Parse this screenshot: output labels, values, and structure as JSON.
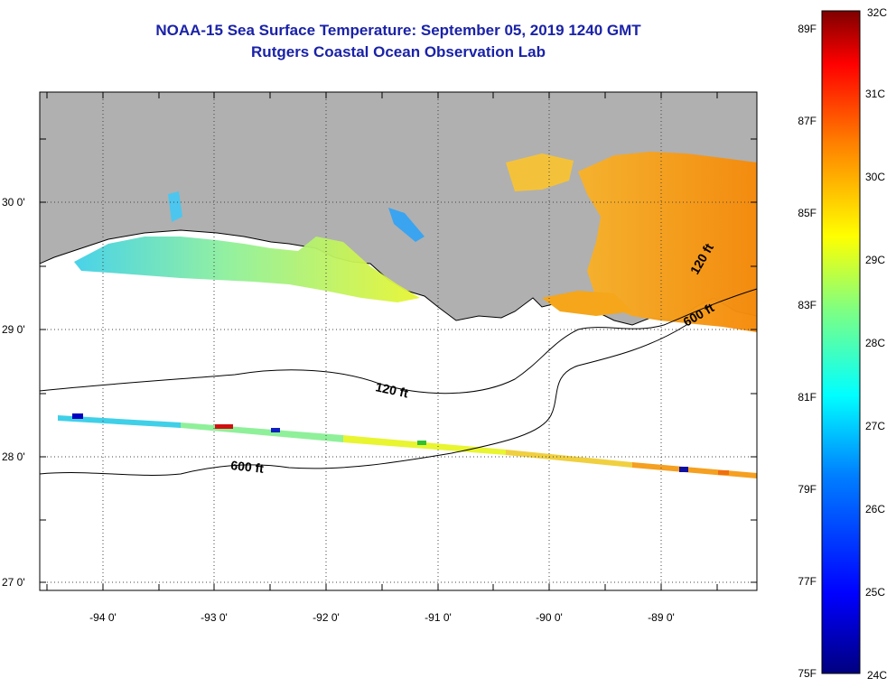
{
  "title": "NOAA-15 Sea Surface Temperature:  September 05, 2019 1240 GMT",
  "subtitle": "Rutgers Coastal Ocean Observation Lab",
  "map": {
    "lon_ticks": [
      {
        "value": -94,
        "label": "-94 0'"
      },
      {
        "value": -93,
        "label": "-93 0'"
      },
      {
        "value": -92,
        "label": "-92 0'"
      },
      {
        "value": -91,
        "label": "-91 0'"
      },
      {
        "value": -90,
        "label": "-90 0'"
      },
      {
        "value": -89,
        "label": "-89 0'"
      }
    ],
    "lat_ticks": [
      {
        "value": 30,
        "label": "30 0'"
      },
      {
        "value": 29,
        "label": "29 0'"
      },
      {
        "value": 28,
        "label": "28 0'"
      },
      {
        "value": 27,
        "label": "27 0'"
      }
    ],
    "lon_range": [
      -94.55,
      -88.12
    ],
    "lat_range": [
      26.9,
      30.83
    ],
    "land_color": "#b0b0b0",
    "ocean_color": "#ffffff",
    "isobaths": [
      {
        "label": "120 ft"
      },
      {
        "label": "600 ft"
      },
      {
        "label": "120 ft"
      },
      {
        "label": "600 ft"
      }
    ]
  },
  "colorbar": {
    "celsius": [
      "32C",
      "31C",
      "30C",
      "29C",
      "28C",
      "27C",
      "26C",
      "25C",
      "24C"
    ],
    "fahrenheit": [
      "89F",
      "87F",
      "85F",
      "83F",
      "81F",
      "79F",
      "77F",
      "75F"
    ],
    "colors": [
      "#00007f",
      "#0000ff",
      "#0080ff",
      "#00ffff",
      "#80ff80",
      "#ffff00",
      "#ff8000",
      "#ff0000",
      "#7f0000"
    ]
  }
}
